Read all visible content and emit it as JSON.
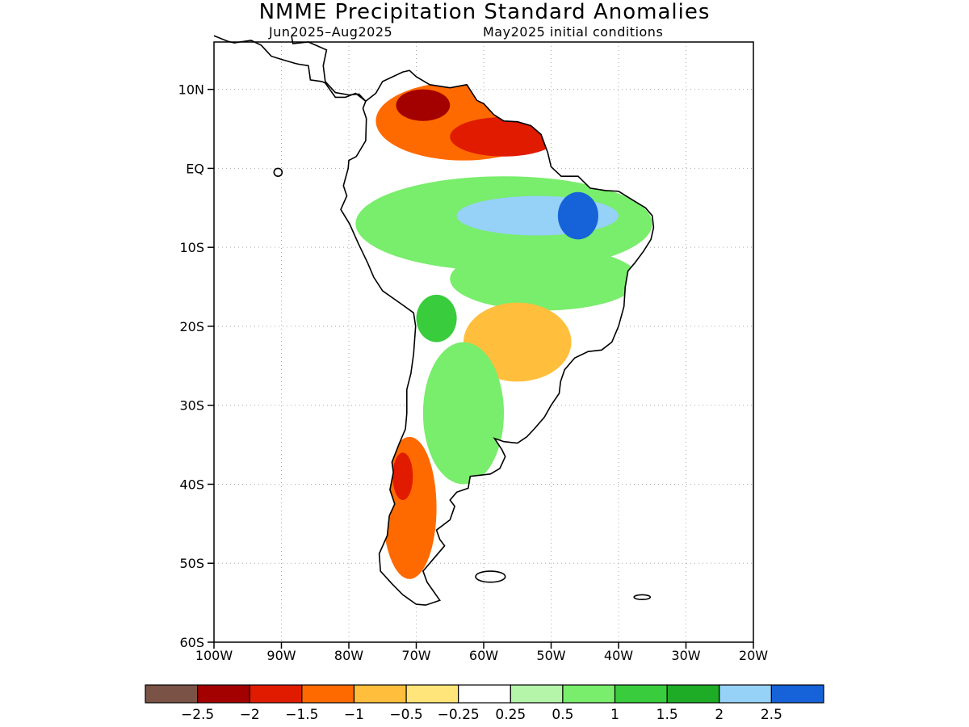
{
  "title": "NMME Precipitation Standard Anomalies",
  "subtitle_left": "Jun2025–Aug2025",
  "subtitle_right": "May2025 initial conditions",
  "map": {
    "lon_range": [
      -100,
      -20
    ],
    "lat_range": [
      -60,
      16
    ],
    "lat_ticks": [
      {
        "value": 10,
        "label": "10N"
      },
      {
        "value": 0,
        "label": "EQ"
      },
      {
        "value": -10,
        "label": "10S"
      },
      {
        "value": -20,
        "label": "20S"
      },
      {
        "value": -30,
        "label": "30S"
      },
      {
        "value": -40,
        "label": "40S"
      },
      {
        "value": -50,
        "label": "50S"
      },
      {
        "value": -60,
        "label": "60S"
      }
    ],
    "lon_ticks": [
      {
        "value": -100,
        "label": "100W"
      },
      {
        "value": -90,
        "label": "90W"
      },
      {
        "value": -80,
        "label": "80W"
      },
      {
        "value": -70,
        "label": "70W"
      },
      {
        "value": -60,
        "label": "60W"
      },
      {
        "value": -50,
        "label": "50W"
      },
      {
        "value": -40,
        "label": "40W"
      },
      {
        "value": -30,
        "label": "30W"
      },
      {
        "value": -20,
        "label": "20W"
      }
    ],
    "grid": true
  },
  "colorbar": {
    "colors": [
      "#7a5246",
      "#a30000",
      "#e01b00",
      "#ff6a00",
      "#ffbf3d",
      "#ffe57a",
      "#ffffff",
      "#b5f5a9",
      "#79ed6c",
      "#39cc3c",
      "#1eab25",
      "#96d1f7",
      "#1663d9"
    ],
    "labels": [
      "−2.5",
      "−2",
      "−1.5",
      "−1",
      "−0.5",
      "−0.25",
      "0.25",
      "0.5",
      "1",
      "1.5",
      "2",
      "2.5"
    ]
  },
  "regions": [
    {
      "name": "northern-dry",
      "category": 3,
      "lon": -63,
      "lat": 6,
      "rx": 13,
      "ry": 5
    },
    {
      "name": "venezuela-core",
      "category": 1,
      "lon": -69,
      "lat": 8,
      "rx": 4,
      "ry": 2
    },
    {
      "name": "guianas-core",
      "category": 2,
      "lon": -57,
      "lat": 4,
      "rx": 8,
      "ry": 2.5
    },
    {
      "name": "amazon-wet",
      "category": 8,
      "lon": -57,
      "lat": -7,
      "rx": 22,
      "ry": 6
    },
    {
      "name": "amazon-very-wet",
      "category": 11,
      "lon": -52,
      "lat": -6,
      "rx": 12,
      "ry": 2.5
    },
    {
      "name": "ne-brazil-core",
      "category": 12,
      "lon": -46,
      "lat": -6,
      "rx": 3,
      "ry": 3
    },
    {
      "name": "central-brazil-wet",
      "category": 8,
      "lon": -51,
      "lat": -14,
      "rx": 14,
      "ry": 4
    },
    {
      "name": "brazil-dry",
      "category": 4,
      "lon": -55,
      "lat": -22,
      "rx": 8,
      "ry": 5
    },
    {
      "name": "argentina-wet",
      "category": 8,
      "lon": -63,
      "lat": -31,
      "rx": 6,
      "ry": 9
    },
    {
      "name": "bolivia-wet",
      "category": 9,
      "lon": -67,
      "lat": -19,
      "rx": 3,
      "ry": 3
    },
    {
      "name": "chile-dry",
      "category": 3,
      "lon": -71,
      "lat": -43,
      "rx": 4,
      "ry": 9
    },
    {
      "name": "chile-core",
      "category": 2,
      "lon": -72,
      "lat": -39,
      "rx": 1.5,
      "ry": 3
    }
  ]
}
